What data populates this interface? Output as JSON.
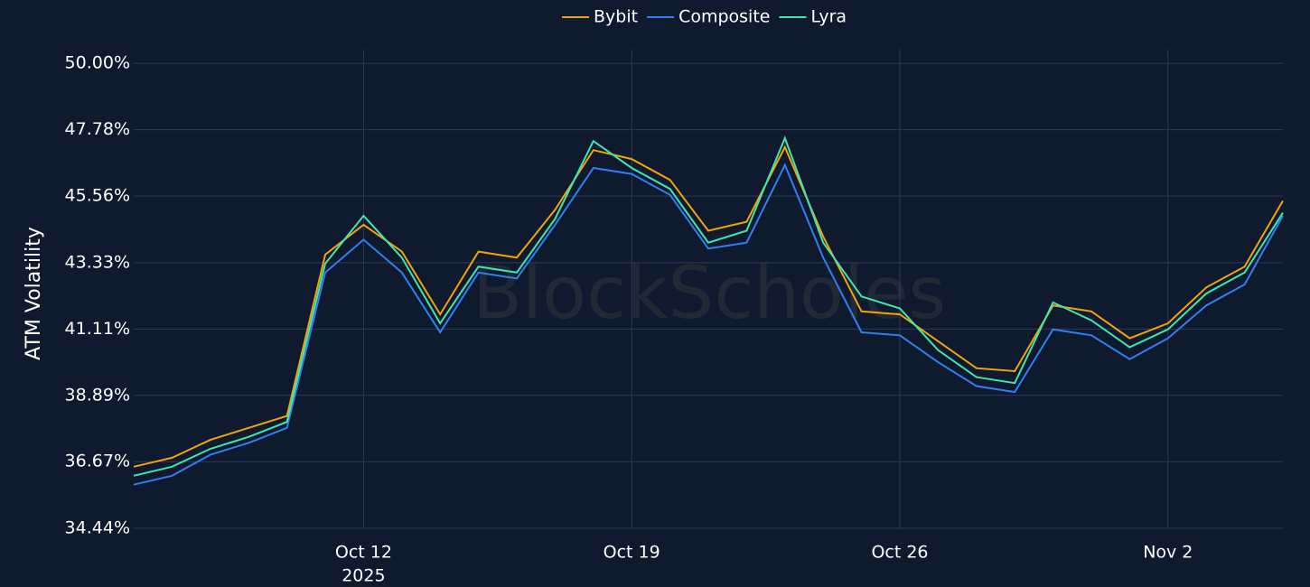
{
  "chart_data": {
    "type": "line",
    "y_label": "ATM Volatility",
    "watermark": "BlockScholes",
    "x": [
      "2025-10-06",
      "2025-10-07",
      "2025-10-08",
      "2025-10-09",
      "2025-10-10",
      "2025-10-11",
      "2025-10-12",
      "2025-10-13",
      "2025-10-14",
      "2025-10-15",
      "2025-10-16",
      "2025-10-17",
      "2025-10-18",
      "2025-10-19",
      "2025-10-20",
      "2025-10-21",
      "2025-10-22",
      "2025-10-23",
      "2025-10-24",
      "2025-10-25",
      "2025-10-26",
      "2025-10-27",
      "2025-10-28",
      "2025-10-29",
      "2025-10-30",
      "2025-10-31",
      "2025-11-01",
      "2025-11-02",
      "2025-11-03",
      "2025-11-04",
      "2025-11-05"
    ],
    "series": [
      {
        "name": "Bybit",
        "color": "#f0a30a",
        "values": [
          36.5,
          36.8,
          37.4,
          37.8,
          38.2,
          43.6,
          44.6,
          43.7,
          41.6,
          43.7,
          43.5,
          45.1,
          47.1,
          46.8,
          46.1,
          44.4,
          44.7,
          47.2,
          44.2,
          41.7,
          41.6,
          40.7,
          39.8,
          39.7,
          41.9,
          41.7,
          40.8,
          41.3,
          42.5,
          43.2,
          45.4
        ]
      },
      {
        "name": "Composite",
        "color": "#2f7ff0",
        "values": [
          35.9,
          36.2,
          36.9,
          37.3,
          37.8,
          43.0,
          44.1,
          43.0,
          41.0,
          43.0,
          42.8,
          44.6,
          46.5,
          46.3,
          45.6,
          43.8,
          44.0,
          46.6,
          43.5,
          41.0,
          40.9,
          40.0,
          39.2,
          39.0,
          41.1,
          40.9,
          40.1,
          40.8,
          41.9,
          42.6,
          44.9
        ]
      },
      {
        "name": "Lyra",
        "color": "#3de8b0",
        "values": [
          36.2,
          36.5,
          37.1,
          37.5,
          38.0,
          43.3,
          44.9,
          43.5,
          41.3,
          43.2,
          43.0,
          44.8,
          47.4,
          46.5,
          45.8,
          44.0,
          44.4,
          47.5,
          44.0,
          42.2,
          41.8,
          40.4,
          39.5,
          39.3,
          42.0,
          41.4,
          40.5,
          41.1,
          42.3,
          43.0,
          45.0
        ]
      }
    ],
    "xlim": [
      "2025-10-06",
      "2025-11-05"
    ],
    "xticks": [
      {
        "value": "2025-10-12",
        "label": "Oct 12"
      },
      {
        "value": "2025-10-19",
        "label": "Oct 19"
      },
      {
        "value": "2025-10-26",
        "label": "Oct 26"
      },
      {
        "value": "2025-11-02",
        "label": "Nov 2"
      }
    ],
    "x_year_label": "2025",
    "ylim": [
      34.44,
      50.46
    ],
    "yticks": [
      {
        "value": 34.44,
        "label": "34.44%"
      },
      {
        "value": 36.67,
        "label": "36.67%"
      },
      {
        "value": 38.89,
        "label": "38.89%"
      },
      {
        "value": 41.11,
        "label": "41.11%"
      },
      {
        "value": 43.33,
        "label": "43.33%"
      },
      {
        "value": 45.56,
        "label": "45.56%"
      },
      {
        "value": 47.78,
        "label": "47.78%"
      },
      {
        "value": 50.0,
        "label": "50.00%"
      }
    ],
    "grid": true
  }
}
